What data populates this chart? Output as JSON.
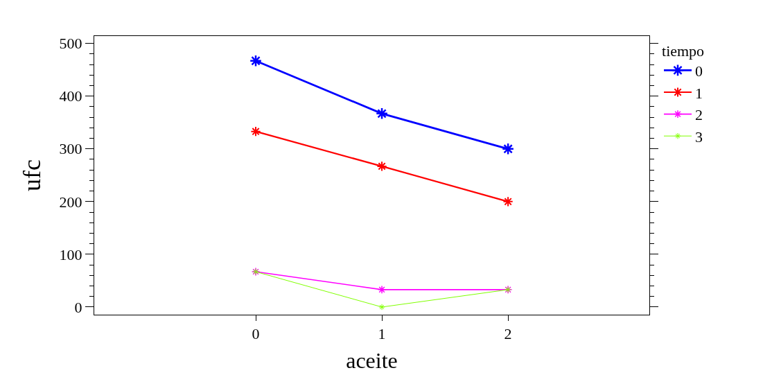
{
  "chart_data": {
    "type": "line",
    "xlabel": "aceite",
    "ylabel": "ufc",
    "legend_title": "tiempo",
    "x": [
      0,
      1,
      2
    ],
    "xlim": [
      -1.28,
      3.12
    ],
    "xticks": [
      0,
      1,
      2
    ],
    "ylim": [
      -14.5,
      514
    ],
    "yticks": [
      0,
      {
        "value": 20,
        "label": null
      },
      {
        "value": 40,
        "label": null
      },
      {
        "value": 60,
        "label": null
      },
      {
        "value": 80,
        "label": null
      },
      100,
      {
        "value": 120,
        "label": null
      },
      {
        "value": 140,
        "label": null
      },
      {
        "value": 160,
        "label": null
      },
      {
        "value": 180,
        "label": null
      },
      200,
      {
        "value": 220,
        "label": null
      },
      {
        "value": 240,
        "label": null
      },
      {
        "value": 260,
        "label": null
      },
      {
        "value": 280,
        "label": null
      },
      300,
      {
        "value": 320,
        "label": null
      },
      {
        "value": 340,
        "label": null
      },
      {
        "value": 360,
        "label": null
      },
      {
        "value": 380,
        "label": null
      },
      400,
      {
        "value": 420,
        "label": null
      },
      {
        "value": 440,
        "label": null
      },
      {
        "value": 460,
        "label": null
      },
      {
        "value": 480,
        "label": null
      },
      500
    ],
    "series": [
      {
        "name": "0",
        "color": "#0000ff",
        "values": [
          467,
          367,
          300
        ]
      },
      {
        "name": "1",
        "color": "#ff0000",
        "values": [
          333,
          267,
          200
        ]
      },
      {
        "name": "2",
        "color": "#ff00ff",
        "values": [
          67,
          33,
          33
        ]
      },
      {
        "name": "3",
        "color": "#80ff00",
        "values": [
          67,
          0,
          33
        ]
      }
    ],
    "marker": "cross",
    "line_style": "solid",
    "legend": "top right"
  }
}
